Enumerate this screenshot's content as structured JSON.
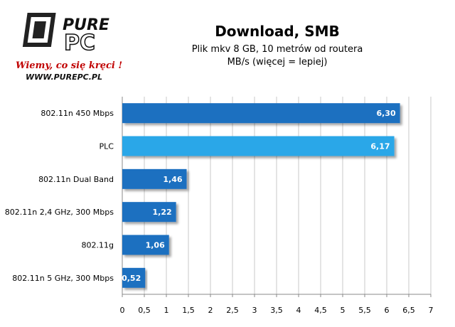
{
  "logo": {
    "brand_top": "PURE",
    "brand_bottom": "PC",
    "slogan": "Wiemy, co się kręci !",
    "url": "WWW.PUREPC.PL"
  },
  "chart_data": {
    "type": "bar",
    "orientation": "horizontal",
    "title": "Download, SMB",
    "subtitle": "Plik mkv 8 GB, 10 metrów  od routera",
    "note": "MB/s (więcej = lepiej)",
    "categories": [
      "802.11n 450 Mbps",
      "PLC",
      "802.11n Dual Band",
      "802.11n 2,4 GHz, 300 Mbps",
      "802.11g",
      "802.11n 5 GHz, 300 Mbps"
    ],
    "values": [
      6.3,
      6.17,
      1.46,
      1.22,
      1.06,
      0.52
    ],
    "value_labels": [
      "6,30",
      "6,17",
      "1,46",
      "1,22",
      "1,06",
      "0,52"
    ],
    "bar_colors": [
      "#1f6fc0",
      "#2aa7e8",
      "#1f6fc0",
      "#1f6fc0",
      "#1f6fc0",
      "#1f6fc0"
    ],
    "xlim": [
      0,
      7
    ],
    "xticks": [
      "0",
      "0,5",
      "1",
      "1,5",
      "2",
      "2,5",
      "3",
      "3,5",
      "4",
      "4,5",
      "5",
      "5,5",
      "6",
      "6,5",
      "7"
    ],
    "grid": true
  }
}
